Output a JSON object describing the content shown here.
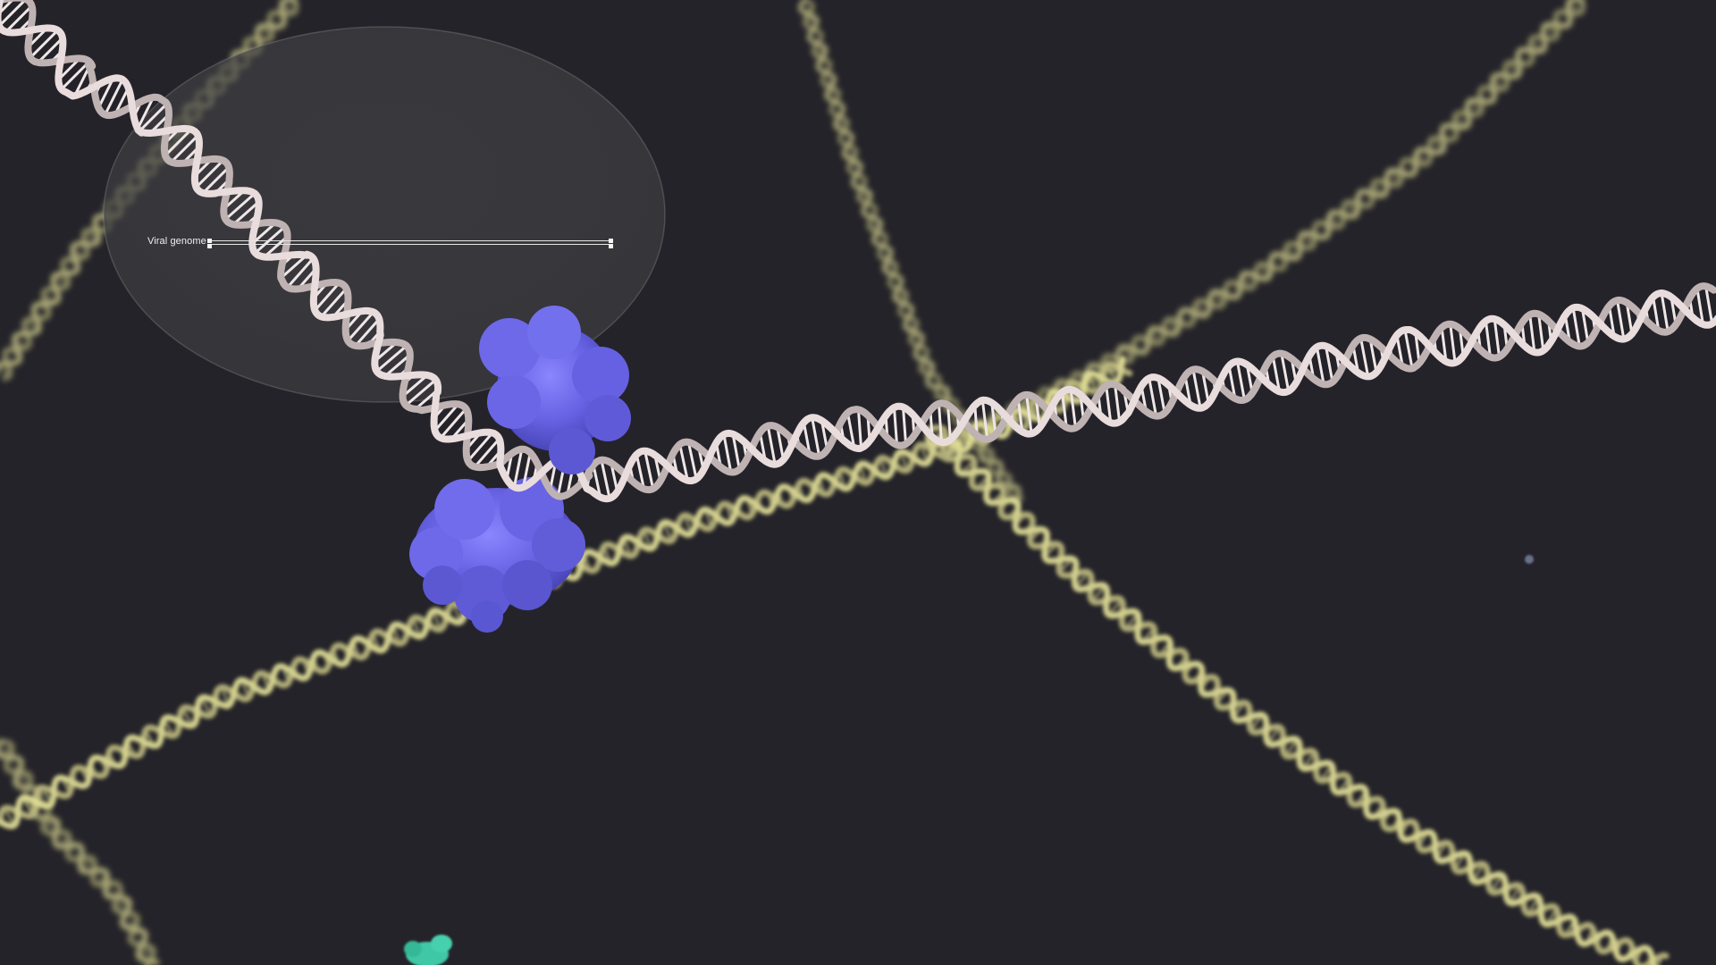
{
  "scene": {
    "background": "#242329",
    "colors": {
      "foreground_dna": "#e9dcdc",
      "background_dna": "#e6e39a",
      "protein": "#6a67e6",
      "small_molecule": "#3fc7a6",
      "particle": "#7a86a6",
      "lens": "#cfcfcf"
    }
  },
  "annotation": {
    "label": "Viral genome"
  }
}
